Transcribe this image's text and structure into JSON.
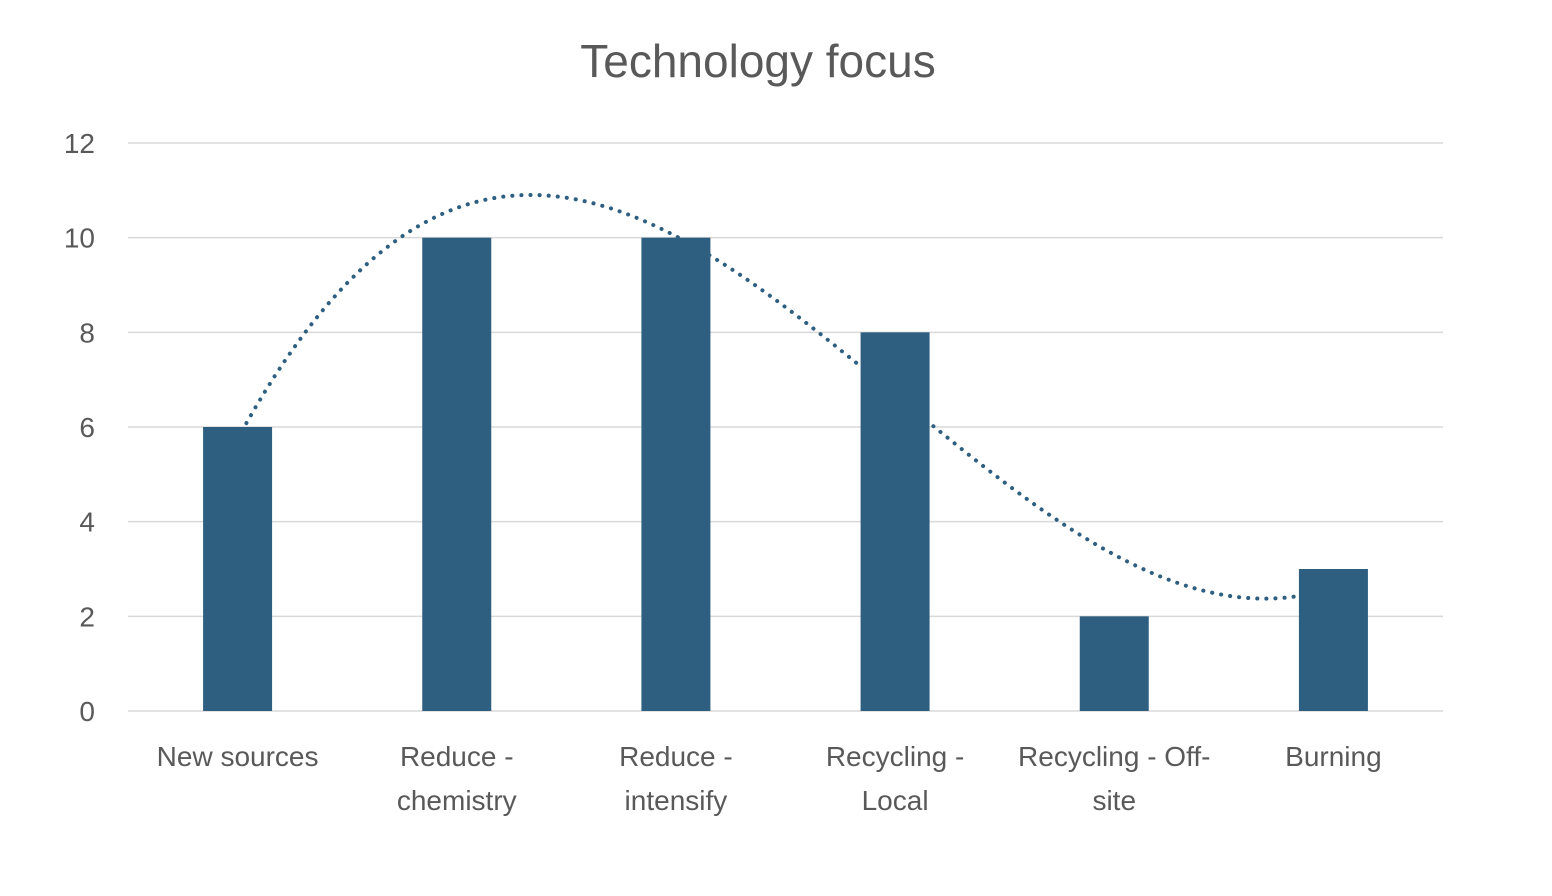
{
  "chart_data": {
    "type": "bar",
    "title": "Technology focus",
    "categories": [
      [
        "New sources"
      ],
      [
        "Reduce -",
        "chemistry"
      ],
      [
        "Reduce -",
        "intensify"
      ],
      [
        "Recycling -",
        "Local"
      ],
      [
        "Recycling - Off-",
        "site"
      ],
      [
        "Burning"
      ]
    ],
    "values": [
      6,
      10,
      10,
      8,
      2,
      3
    ],
    "ylim": [
      0,
      12
    ],
    "yticks": [
      0,
      2,
      4,
      6,
      8,
      10,
      12
    ],
    "grid": true,
    "legend": "none",
    "trendline": {
      "type": "polynomial",
      "style": "dotted"
    },
    "colors": {
      "bar": "#2e5f80",
      "trendline": "#2e5f80",
      "grid": "#d9d9d9",
      "text": "#595959"
    }
  }
}
